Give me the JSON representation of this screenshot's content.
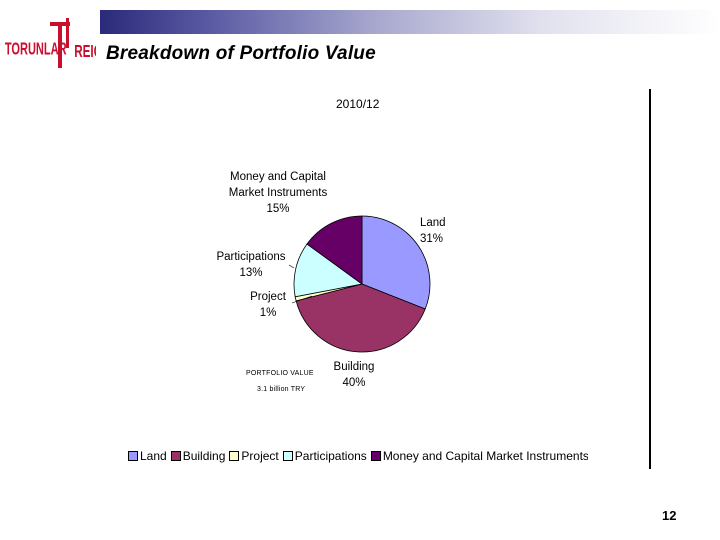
{
  "slide": {
    "title": "Breakdown of Portfolio Value",
    "page_number": "12"
  },
  "logo": {
    "left_text": "TORUNLAR",
    "right_text": "REIC",
    "color": "#c8102e"
  },
  "note": {
    "line1": "PORTFOLIO VALUE",
    "line2": "3.1 billion TRY"
  },
  "chart_data": {
    "type": "pie",
    "title": "2010/12",
    "unit": "%",
    "legend_position": "bottom",
    "slices": [
      {
        "label": "Land",
        "label_lines": [
          "Land"
        ],
        "value": 31,
        "pct": "31%",
        "color": "#9999ff"
      },
      {
        "label": "Building",
        "label_lines": [
          "Building"
        ],
        "value": 40,
        "pct": "40%",
        "color": "#993366"
      },
      {
        "label": "Project",
        "label_lines": [
          "Project"
        ],
        "value": 1,
        "pct": "1%",
        "color": "#ffffcc"
      },
      {
        "label": "Participations",
        "label_lines": [
          "Participations"
        ],
        "value": 13,
        "pct": "13%",
        "color": "#ccffff"
      },
      {
        "label": "Money and Capital Market Instruments",
        "label_lines": [
          "Money and Capital",
          "Market Instruments"
        ],
        "value": 15,
        "pct": "15%",
        "color": "#660066"
      }
    ]
  }
}
